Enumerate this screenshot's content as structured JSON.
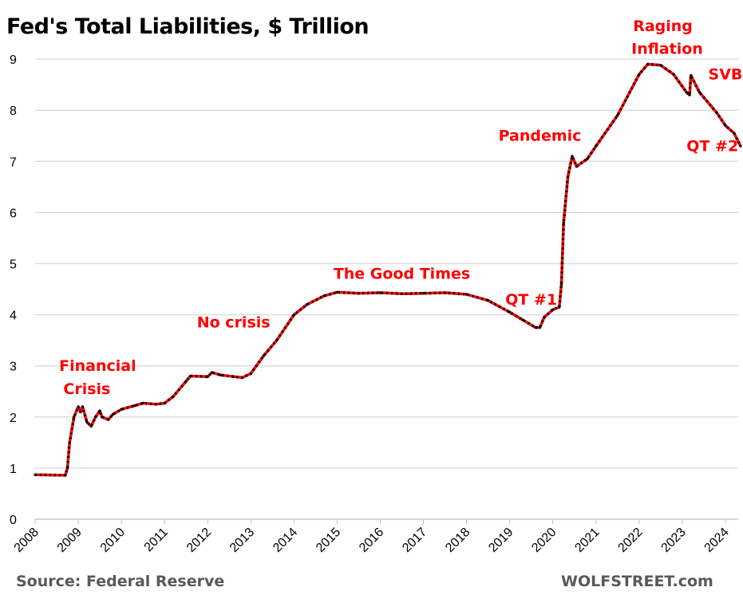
{
  "chart_data": {
    "type": "line",
    "title": "Fed's Total Liabilities, $ Trillion",
    "xlabel": "",
    "ylabel": "",
    "xlim": [
      2008,
      2024.35
    ],
    "ylim": [
      0,
      9
    ],
    "grid": true,
    "legend": "none",
    "x_ticks": [
      "2008",
      "2009",
      "2010",
      "2011",
      "2012",
      "2013",
      "2014",
      "2015",
      "2016",
      "2017",
      "2018",
      "2019",
      "2020",
      "2021",
      "2022",
      "2023",
      "2024"
    ],
    "y_ticks": [
      "0",
      "1",
      "2",
      "3",
      "4",
      "5",
      "6",
      "7",
      "8",
      "9"
    ],
    "line_color": "#ff0000",
    "marker_color": "#000000",
    "series": [
      {
        "x": [
          2008.0,
          2008.7,
          2008.75,
          2008.8,
          2008.9,
          2009.0,
          2009.05,
          2009.1,
          2009.2,
          2009.3,
          2009.4,
          2009.5,
          2009.55,
          2009.7,
          2009.8,
          2010.0,
          2010.3,
          2010.5,
          2010.8,
          2011.0,
          2011.2,
          2011.5,
          2011.6,
          2012.0,
          2012.1,
          2012.3,
          2012.6,
          2012.8,
          2013.0,
          2013.3,
          2013.6,
          2014.0,
          2014.3,
          2014.7,
          2015.0,
          2015.5,
          2016.0,
          2016.5,
          2017.0,
          2017.5,
          2018.0,
          2018.5,
          2019.0,
          2019.3,
          2019.6,
          2019.7,
          2019.8,
          2020.0,
          2020.15,
          2020.2,
          2020.25,
          2020.35,
          2020.45,
          2020.55,
          2020.8,
          2021.0,
          2021.5,
          2022.0,
          2022.2,
          2022.5,
          2022.8,
          2023.1,
          2023.17,
          2023.2,
          2023.4,
          2023.8,
          2024.0,
          2024.2,
          2024.35
        ],
        "y": [
          0.87,
          0.86,
          1.0,
          1.5,
          2.0,
          2.2,
          2.1,
          2.2,
          1.9,
          1.82,
          2.0,
          2.12,
          2.0,
          1.95,
          2.05,
          2.15,
          2.22,
          2.27,
          2.25,
          2.27,
          2.4,
          2.7,
          2.8,
          2.79,
          2.87,
          2.82,
          2.79,
          2.77,
          2.85,
          3.2,
          3.5,
          4.0,
          4.2,
          4.37,
          4.44,
          4.42,
          4.43,
          4.41,
          4.42,
          4.43,
          4.4,
          4.28,
          4.05,
          3.9,
          3.75,
          3.75,
          3.95,
          4.1,
          4.15,
          4.6,
          5.8,
          6.7,
          7.1,
          6.9,
          7.05,
          7.3,
          7.9,
          8.7,
          8.9,
          8.88,
          8.7,
          8.35,
          8.3,
          8.68,
          8.35,
          7.95,
          7.7,
          7.55,
          7.3
        ]
      }
    ],
    "annotations": [
      {
        "text": "Financial",
        "x": 2009.45,
        "y": 2.9
      },
      {
        "text": "Crisis",
        "x": 2009.2,
        "y": 2.45
      },
      {
        "text": "No crisis",
        "x": 2012.6,
        "y": 3.75
      },
      {
        "text": "The Good Times",
        "x": 2016.5,
        "y": 4.7
      },
      {
        "text": "QT #1",
        "x": 2019.5,
        "y": 4.2
      },
      {
        "text": "Pandemic",
        "x": 2019.7,
        "y": 7.4
      },
      {
        "text": "Raging",
        "x": 2022.55,
        "y": 9.55
      },
      {
        "text": "Inflation",
        "x": 2022.65,
        "y": 9.1
      },
      {
        "text": "SVB",
        "x": 2024.0,
        "y": 8.6
      },
      {
        "text": "QT #2",
        "x": 2023.7,
        "y": 7.2
      }
    ]
  },
  "footer": {
    "source": "Source: Federal Reserve",
    "brand": "WOLFSTREET.com"
  }
}
